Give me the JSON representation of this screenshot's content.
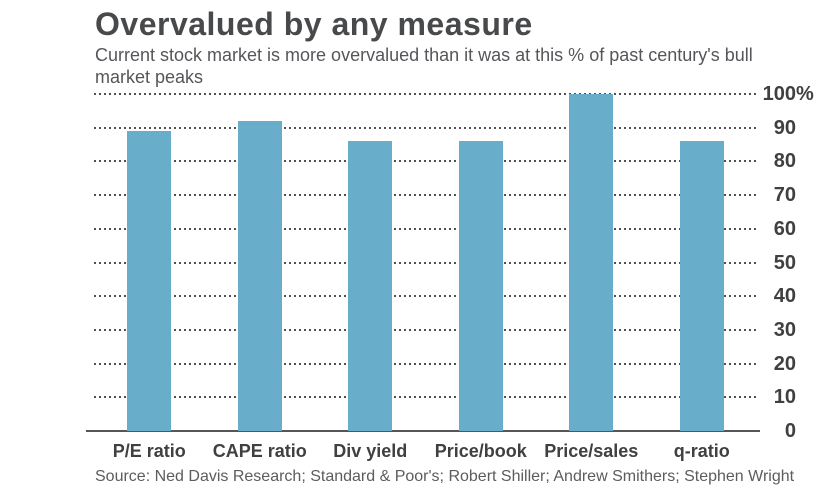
{
  "page": {
    "title": "Overvalued by any measure",
    "subtitle": "Current stock market is more overvalued than it was at this % of past century's bull market peaks",
    "source": "Source: Ned Davis Research; Standard & Poor's; Robert Shiller; Andrew Smithers; Stephen Wright"
  },
  "colors": {
    "bar": "#68aecb",
    "heading_text": "#48494b",
    "body_text": "#55565a",
    "axis_text": "#3f4042",
    "gridline": "#4f5052",
    "baseline": "#55565a"
  },
  "chart_data": {
    "type": "bar",
    "title": "Overvalued by any measure",
    "subtitle": "Current stock market is more overvalued than it was at this % of past century's bull market peaks",
    "categories": [
      "P/E ratio",
      "CAPE ratio",
      "Div yield",
      "Price/book",
      "Price/sales",
      "q-ratio"
    ],
    "values": [
      89,
      92,
      86,
      86,
      100,
      86
    ],
    "unit": "%",
    "xlabel": "",
    "ylabel": "",
    "ylim": [
      0,
      100
    ],
    "yaxis_side": "right",
    "grid": "dotted-horizontal",
    "legend": "none",
    "yticks": [
      {
        "value": 0,
        "label": "0",
        "suffix": ""
      },
      {
        "value": 10,
        "label": "10",
        "suffix": ""
      },
      {
        "value": 20,
        "label": "20",
        "suffix": ""
      },
      {
        "value": 30,
        "label": "30",
        "suffix": ""
      },
      {
        "value": 40,
        "label": "40",
        "suffix": ""
      },
      {
        "value": 50,
        "label": "50",
        "suffix": ""
      },
      {
        "value": 60,
        "label": "60",
        "suffix": ""
      },
      {
        "value": 70,
        "label": "70",
        "suffix": ""
      },
      {
        "value": 80,
        "label": "80",
        "suffix": ""
      },
      {
        "value": 90,
        "label": "90",
        "suffix": ""
      },
      {
        "value": 100,
        "label": "100",
        "suffix": "%"
      }
    ],
    "source": "Source: Ned Davis Research; Standard & Poor's; Robert Shiller; Andrew Smithers; Stephen Wright"
  }
}
